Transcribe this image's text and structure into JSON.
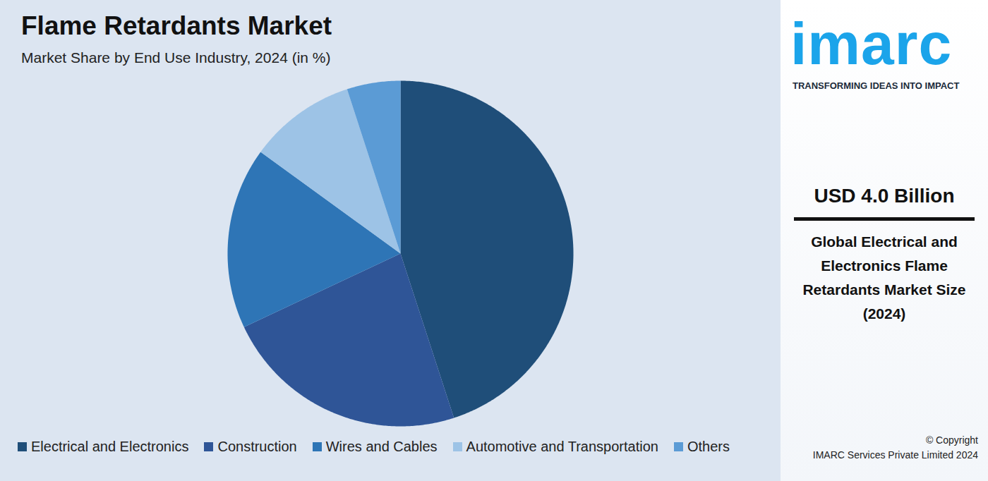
{
  "chart_data": {
    "type": "pie",
    "title": "Flame Retardants Market",
    "subtitle": "Market Share by End Use Industry, 2024 (in %)",
    "categories": [
      "Electrical and Electronics",
      "Construction",
      "Wires and Cables",
      "Automotive and Transportation",
      "Others"
    ],
    "values": [
      45,
      23,
      17,
      10,
      5
    ],
    "colors": [
      "#1f4e79",
      "#2f5597",
      "#2e75b6",
      "#9dc3e6",
      "#5b9bd5"
    ],
    "legend": "bottom",
    "data_labels": false,
    "tick_labels": false
  },
  "side_panel": {
    "logo": "imarc",
    "tagline": "TRANSFORMING IDEAS INTO IMPACT",
    "value": "USD 4.0 Billion",
    "caption": "Global Electrical and Electronics Flame Retardants Market Size (2024)",
    "copyright": [
      "© Copyright",
      "IMARC Services Private Limited 2024"
    ]
  }
}
